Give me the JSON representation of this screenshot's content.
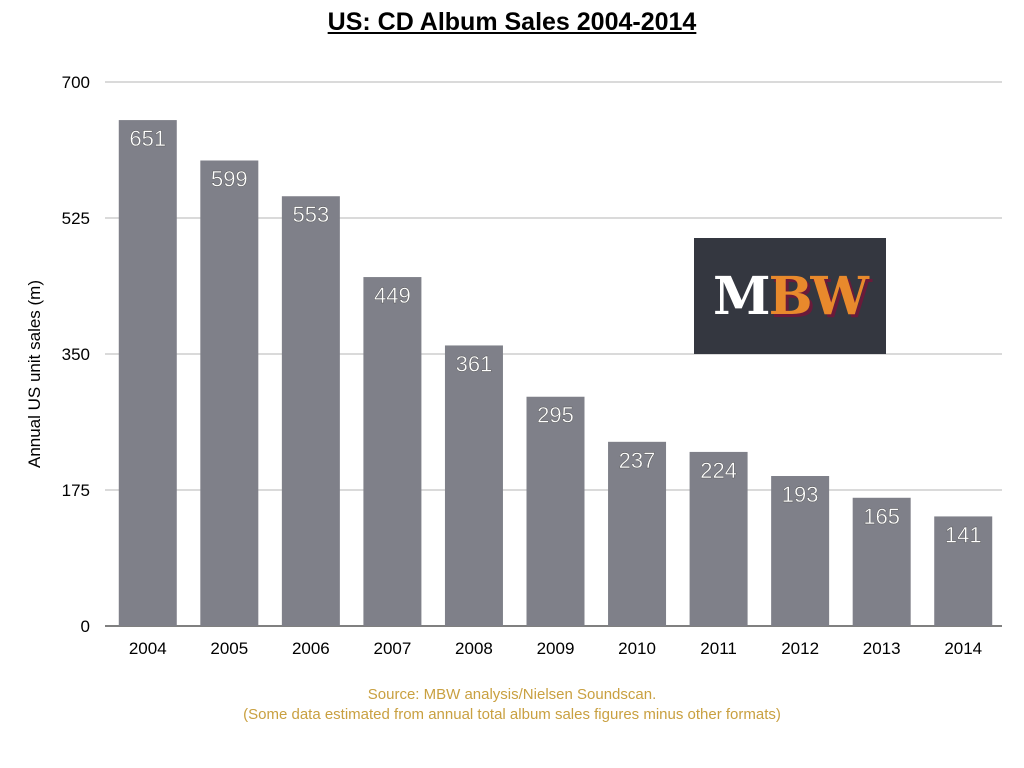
{
  "chart_data": {
    "type": "bar",
    "title": "US: CD Album Sales 2004-2014",
    "xlabel": "",
    "ylabel": "Annual US unit sales (m)",
    "categories": [
      "2004",
      "2005",
      "2006",
      "2007",
      "2008",
      "2009",
      "2010",
      "2011",
      "2012",
      "2013",
      "2014"
    ],
    "values": [
      651,
      599,
      553,
      449,
      361,
      295,
      237,
      224,
      193,
      165,
      141
    ],
    "ylim": [
      0,
      700
    ],
    "yticks": [
      0,
      175,
      350,
      525,
      700
    ],
    "grid": true,
    "bar_color": "#7f8089",
    "data_labels": true
  },
  "logo": {
    "text_m": "M",
    "text_bw": "BW"
  },
  "source": {
    "line1": "Source: MBW analysis/Nielsen Soundscan.",
    "line2": "(Some data estimated from annual total album sales figures minus other formats)"
  }
}
